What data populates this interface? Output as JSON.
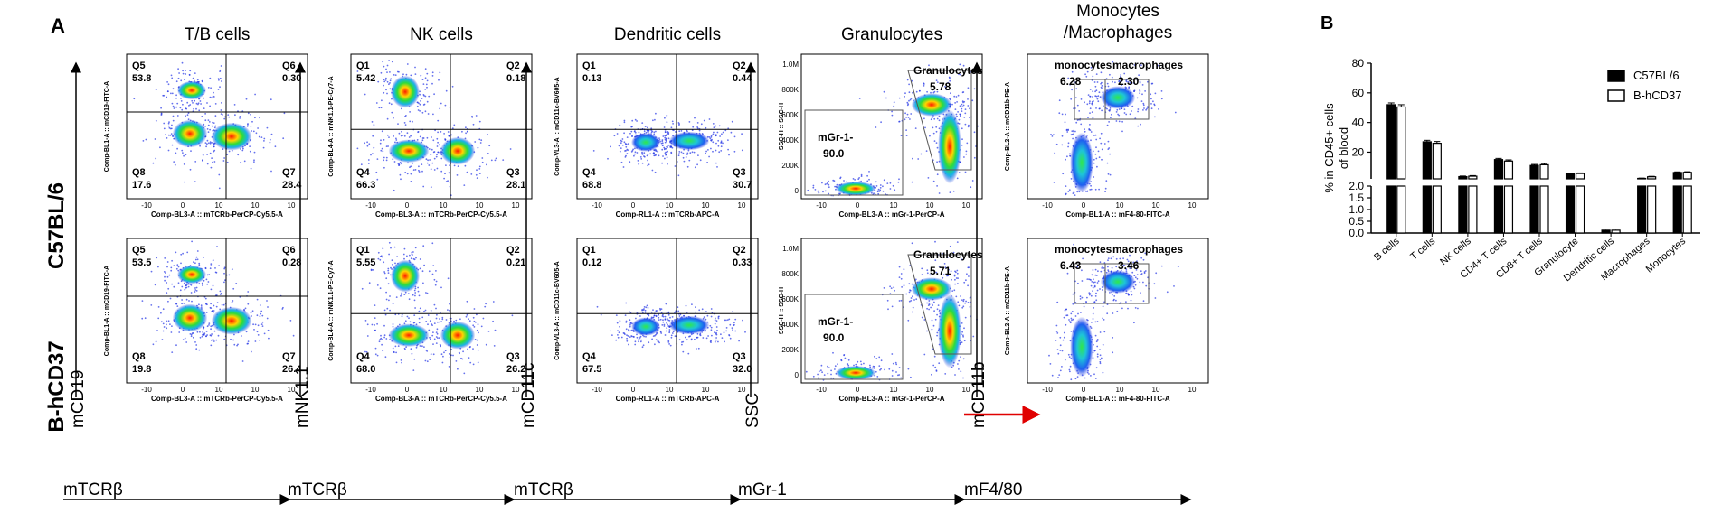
{
  "panel_a": {
    "letter": "A",
    "row_labels": [
      "C57BL/6",
      "B-hCD37"
    ],
    "columns": [
      {
        "title": "T/B cells",
        "y_marker": "mCD19",
        "x_marker": "mTCRβ",
        "x_axis": "Comp-BL3-A :: mTCRb-PerCP-Cy5.5-A",
        "y_axis": "Comp-BL1-A :: mCD19-FITC-A",
        "x_ticks": [
          "-10",
          "0",
          "10",
          "10",
          "10"
        ],
        "rows": [
          {
            "gates": [
              {
                "name": "Q5",
                "value": "53.8"
              },
              {
                "name": "Q6",
                "value": "0.30"
              },
              {
                "name": "Q8",
                "value": "17.6"
              },
              {
                "name": "Q7",
                "value": "28.4"
              }
            ]
          },
          {
            "gates": [
              {
                "name": "Q5",
                "value": "53.5"
              },
              {
                "name": "Q6",
                "value": "0.28"
              },
              {
                "name": "Q8",
                "value": "19.8"
              },
              {
                "name": "Q7",
                "value": "26.4"
              }
            ]
          }
        ]
      },
      {
        "title": "NK cells",
        "y_marker": "mNK1.1",
        "x_marker": "mTCRβ",
        "x_axis": "Comp-BL3-A :: mTCRb-PerCP-Cy5.5-A",
        "y_axis": "Comp-BL4-A :: mNK1.1-PE-Cy7-A",
        "x_ticks": [
          "-10",
          "0",
          "10",
          "10",
          "10"
        ],
        "rows": [
          {
            "gates": [
              {
                "name": "Q1",
                "value": "5.42"
              },
              {
                "name": "Q2",
                "value": "0.18"
              },
              {
                "name": "Q4",
                "value": "66.3"
              },
              {
                "name": "Q3",
                "value": "28.1"
              }
            ]
          },
          {
            "gates": [
              {
                "name": "Q1",
                "value": "5.55"
              },
              {
                "name": "Q2",
                "value": "0.21"
              },
              {
                "name": "Q4",
                "value": "68.0"
              },
              {
                "name": "Q3",
                "value": "26.2"
              }
            ]
          }
        ]
      },
      {
        "title": "Dendritic cells",
        "y_marker": "mCD11c",
        "x_marker": "mTCRβ",
        "x_axis": "Comp-RL1-A :: mTCRb-APC-A",
        "y_axis": "Comp-VL3-A :: mCD11c-BV605-A",
        "x_ticks": [
          "-10",
          "0",
          "10",
          "10",
          "10"
        ],
        "rows": [
          {
            "gates": [
              {
                "name": "Q1",
                "value": "0.13"
              },
              {
                "name": "Q2",
                "value": "0.44"
              },
              {
                "name": "Q4",
                "value": "68.8"
              },
              {
                "name": "Q3",
                "value": "30.7"
              }
            ]
          },
          {
            "gates": [
              {
                "name": "Q1",
                "value": "0.12"
              },
              {
                "name": "Q2",
                "value": "0.33"
              },
              {
                "name": "Q4",
                "value": "67.5"
              },
              {
                "name": "Q3",
                "value": "32.0"
              }
            ]
          }
        ]
      },
      {
        "title": "Granulocytes",
        "y_marker": "SSC",
        "x_marker": "mGr-1",
        "x_axis": "Comp-BL3-A :: mGr-1-PerCP-A",
        "y_axis": "SSC-H :: SSC-H",
        "x_ticks": [
          "-10",
          "0",
          "10",
          "10",
          "10"
        ],
        "y_ticks": [
          "1.0M",
          "800K",
          "600K",
          "400K",
          "200K",
          "0"
        ],
        "rows": [
          {
            "gates": [
              {
                "name": "Granulocytes",
                "value": "5.78"
              },
              {
                "name": "mGr-1-",
                "value": "90.0"
              }
            ]
          },
          {
            "gates": [
              {
                "name": "Granulocytes",
                "value": "5.71"
              },
              {
                "name": "mGr-1-",
                "value": "90.0"
              }
            ]
          }
        ]
      },
      {
        "title_line1": "Monocytes",
        "title_line2": "/Macrophages",
        "y_marker": "mCD11b",
        "x_marker": "mF4/80",
        "x_axis": "Comp-BL1-A :: mF4-80-FITC-A",
        "y_axis": "Comp-BL2-A :: mCD11b-PE-A",
        "x_ticks": [
          "-10",
          "0",
          "10",
          "10",
          "10"
        ],
        "rows": [
          {
            "gates": [
              {
                "name": "monocytes",
                "value": "6.28"
              },
              {
                "name": "macrophages",
                "value": "2.30"
              }
            ]
          },
          {
            "gates": [
              {
                "name": "monocytes",
                "value": "6.43"
              },
              {
                "name": "macrophages",
                "value": "3.46"
              }
            ]
          }
        ]
      }
    ]
  },
  "chart_data": {
    "type": "bar",
    "letter": "B",
    "ylabel_line1": "% in CD45+ cells",
    "ylabel_line2": "of blood",
    "categories": [
      "B cells",
      "T cells",
      "NK cells",
      "CD4+ T cells",
      "CD8+ T cells",
      "Granulocyte",
      "Dendritic cells",
      "Macrophages",
      "Monocytes"
    ],
    "series": [
      {
        "name": "C57BL/6",
        "values": [
          52,
          27,
          3.5,
          15,
          11,
          5.5,
          0.12,
          2.3,
          6.3
        ],
        "errors": [
          1.2,
          1.0,
          0.4,
          0.8,
          0.7,
          0.4,
          0.02,
          0.2,
          0.4
        ],
        "fill": "#000000"
      },
      {
        "name": "B-hCD37",
        "values": [
          50.5,
          26,
          3.8,
          14,
          11.5,
          5.6,
          0.12,
          3.4,
          6.4
        ],
        "errors": [
          1.5,
          1.2,
          0.4,
          0.8,
          0.8,
          0.4,
          0.02,
          0.3,
          0.4
        ],
        "fill": "#ffffff"
      }
    ],
    "y_upper": {
      "range": [
        2,
        80
      ],
      "ticks": [
        "20",
        "40",
        "60",
        "80"
      ]
    },
    "y_lower": {
      "range": [
        0,
        2
      ],
      "ticks": [
        "0.0",
        "0.5",
        "1.0",
        "1.5",
        "2.0"
      ]
    },
    "legend_position": "top-right"
  }
}
